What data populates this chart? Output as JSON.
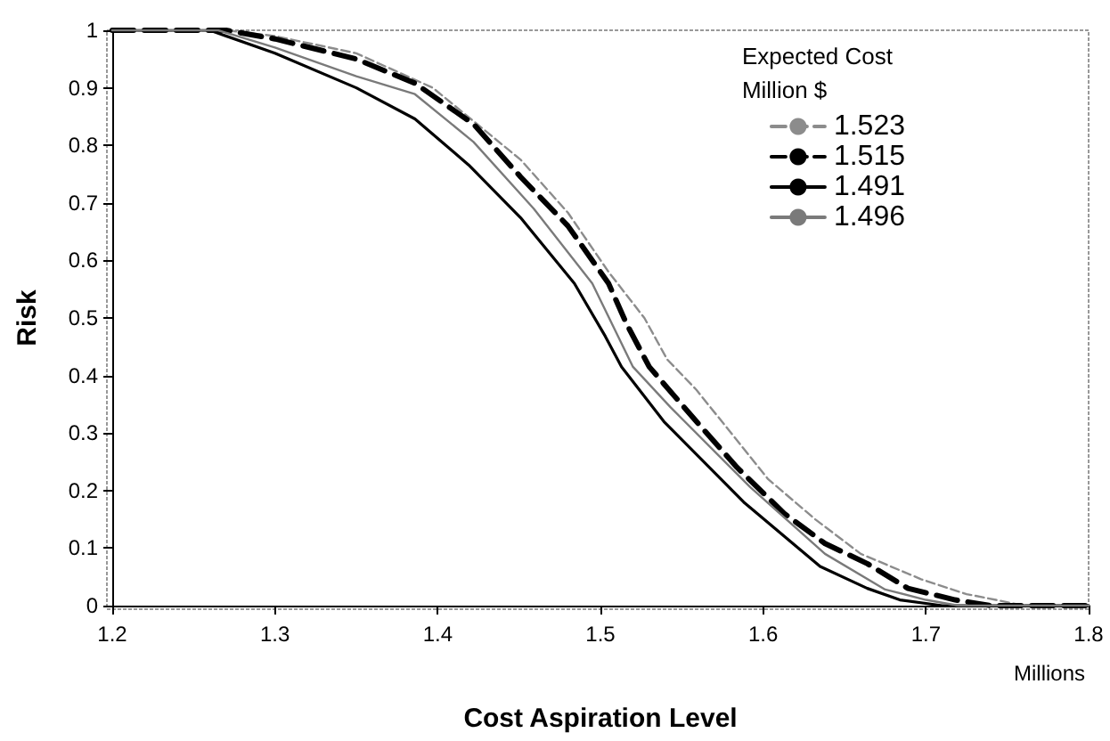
{
  "chart_data": {
    "type": "line",
    "xlabel": "Cost Aspiration Level",
    "ylabel": "Risk",
    "legend_title": "Expected Cost\nMillion $",
    "annotations": [
      "Millions"
    ],
    "xlim": [
      1.2,
      1.8
    ],
    "xticks": [
      1.2,
      1.3,
      1.4,
      1.5,
      1.6,
      1.7,
      1.8
    ],
    "ylim": [
      0,
      1
    ],
    "yticks": [
      0,
      0.1,
      0.2,
      0.3,
      0.4,
      0.5,
      0.6,
      0.7,
      0.8,
      0.9,
      1
    ],
    "grid": false,
    "legend": "top right",
    "marker": "none",
    "series": [
      {
        "name": "1.523",
        "color": "#8c8c8c",
        "line_style": "dashed",
        "x": [
          1.2,
          1.27,
          1.3,
          1.35,
          1.397,
          1.451,
          1.48,
          1.505,
          1.527,
          1.541,
          1.559,
          1.603,
          1.632,
          1.66,
          1.697,
          1.725,
          1.743,
          1.76,
          1.8
        ],
        "values": [
          1,
          1,
          0.99,
          0.96,
          0.9,
          0.775,
          0.683,
          0.58,
          0.5,
          0.428,
          0.375,
          0.22,
          0.15,
          0.09,
          0.046,
          0.02,
          0.01,
          0,
          0
        ]
      },
      {
        "name": "1.515",
        "color": "#000000",
        "line_style": "dashed",
        "x": [
          1.2,
          1.27,
          1.3,
          1.35,
          1.386,
          1.422,
          1.451,
          1.48,
          1.505,
          1.516,
          1.53,
          1.559,
          1.584,
          1.613,
          1.638,
          1.664,
          1.689,
          1.718,
          1.74,
          1.8
        ],
        "values": [
          1,
          1,
          0.985,
          0.95,
          0.908,
          0.837,
          0.745,
          0.66,
          0.56,
          0.49,
          0.415,
          0.32,
          0.24,
          0.16,
          0.108,
          0.073,
          0.03,
          0.01,
          0,
          0
        ]
      },
      {
        "name": "1.491",
        "color": "#000000",
        "line_style": "solid",
        "x": [
          1.2,
          1.26,
          1.3,
          1.35,
          1.386,
          1.419,
          1.451,
          1.484,
          1.503,
          1.513,
          1.539,
          1.588,
          1.635,
          1.664,
          1.684,
          1.71,
          1.8
        ],
        "values": [
          1,
          1,
          0.96,
          0.9,
          0.846,
          0.766,
          0.674,
          0.56,
          0.468,
          0.415,
          0.32,
          0.18,
          0.068,
          0.03,
          0.01,
          0,
          0
        ]
      },
      {
        "name": "1.496",
        "color": "#7a7a7a",
        "line_style": "solid",
        "x": [
          1.2,
          1.265,
          1.3,
          1.35,
          1.386,
          1.422,
          1.459,
          1.495,
          1.52,
          1.543,
          1.592,
          1.638,
          1.675,
          1.7,
          1.72,
          1.8
        ],
        "values": [
          1,
          1,
          0.97,
          0.92,
          0.889,
          0.806,
          0.69,
          0.56,
          0.415,
          0.345,
          0.206,
          0.09,
          0.028,
          0.01,
          0,
          0
        ]
      }
    ]
  }
}
